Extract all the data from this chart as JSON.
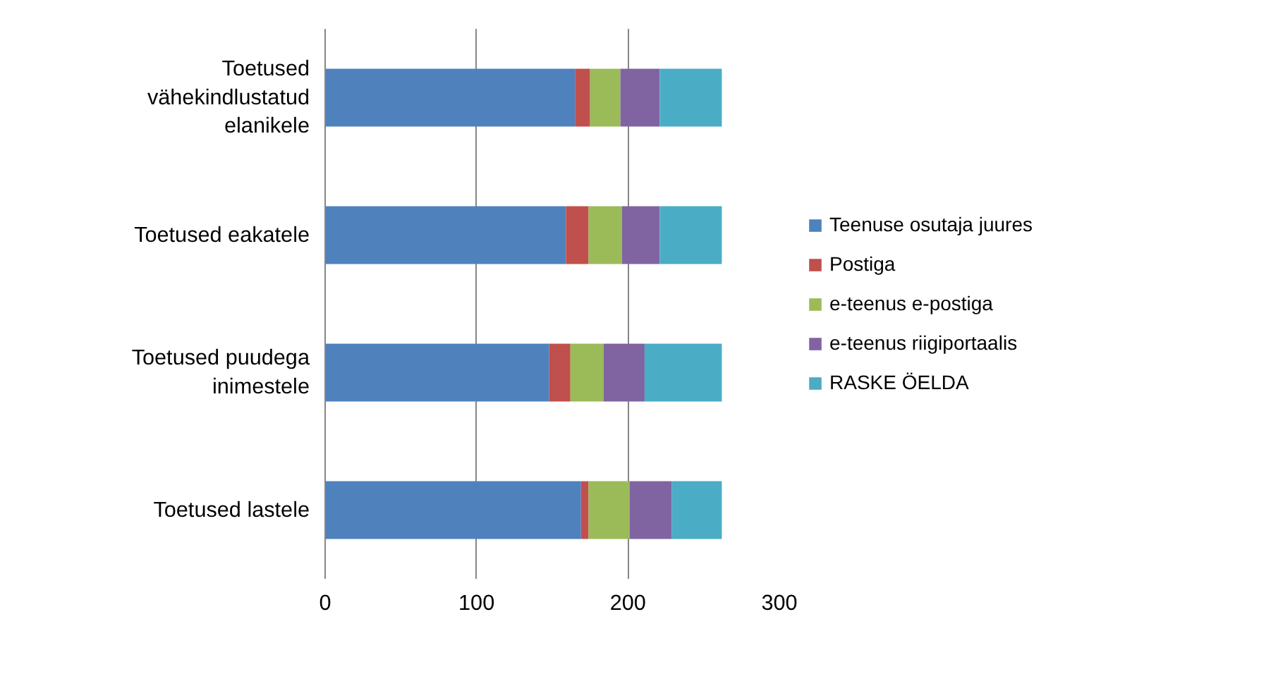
{
  "chart_data": {
    "type": "bar",
    "orientation": "horizontal",
    "stacked": true,
    "categories": [
      "Toetused vähekindlustatud elanikele",
      "Toetused eakatele",
      "Toetused puudega inimestele",
      "Toetused lastele"
    ],
    "series": [
      {
        "name": "Teenuse osutaja juures",
        "color": "#4f81bd",
        "values": [
          165,
          159,
          148,
          169
        ]
      },
      {
        "name": "Postiga",
        "color": "#c0504d",
        "values": [
          10,
          15,
          14,
          5
        ]
      },
      {
        "name": "e-teenus e-postiga",
        "color": "#9bbb59",
        "values": [
          20,
          22,
          22,
          27
        ]
      },
      {
        "name": "e-teenus riigiportaalis",
        "color": "#8064a2",
        "values": [
          26,
          25,
          27,
          28
        ]
      },
      {
        "name": "RASKE ÖELDA",
        "color": "#4bacc6",
        "values": [
          41,
          41,
          51,
          33
        ]
      }
    ],
    "xlim": [
      0,
      300
    ],
    "xticks": [
      0,
      100,
      200,
      300
    ],
    "grid": "x",
    "legend": "right"
  }
}
